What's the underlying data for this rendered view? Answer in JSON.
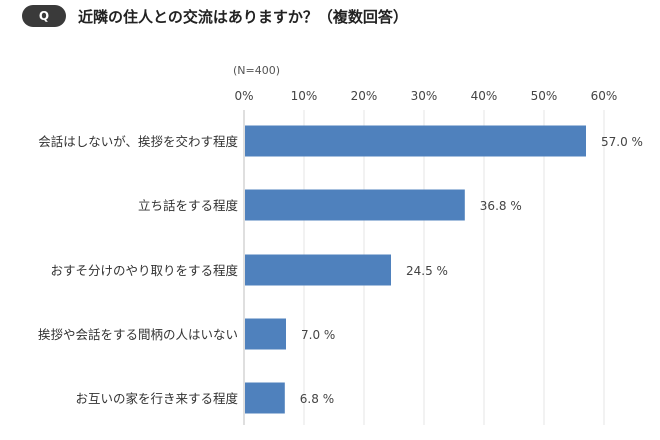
{
  "header": {
    "badge": "Q",
    "title": "近隣の住人との交流はありますか？（複数回答）"
  },
  "note": "(N=400)",
  "colors": {
    "bar": "#4f81bd",
    "grid": "#e6e6e6",
    "text": "#444444"
  },
  "chart_data": {
    "type": "bar",
    "orientation": "horizontal",
    "categories": [
      "会話はしないが、挨拶を交わす程度",
      "立ち話をする程度",
      "おすそ分けのやり取りをする程度",
      "挨拶や会話をする間柄の人はいない",
      "お互いの家を行き来する程度"
    ],
    "values": [
      57.0,
      36.8,
      24.5,
      7.0,
      6.8
    ],
    "value_labels": [
      "57.0 %",
      "36.8 %",
      "24.5 %",
      "7.0 %",
      "6.8 %"
    ],
    "ticks": [
      "0%",
      "10%",
      "20%",
      "30%",
      "40%",
      "50%",
      "60%"
    ],
    "tick_values": [
      0,
      10,
      20,
      30,
      40,
      50,
      60
    ],
    "xlim": [
      0,
      60
    ],
    "grid": true,
    "axis_position": "top"
  }
}
